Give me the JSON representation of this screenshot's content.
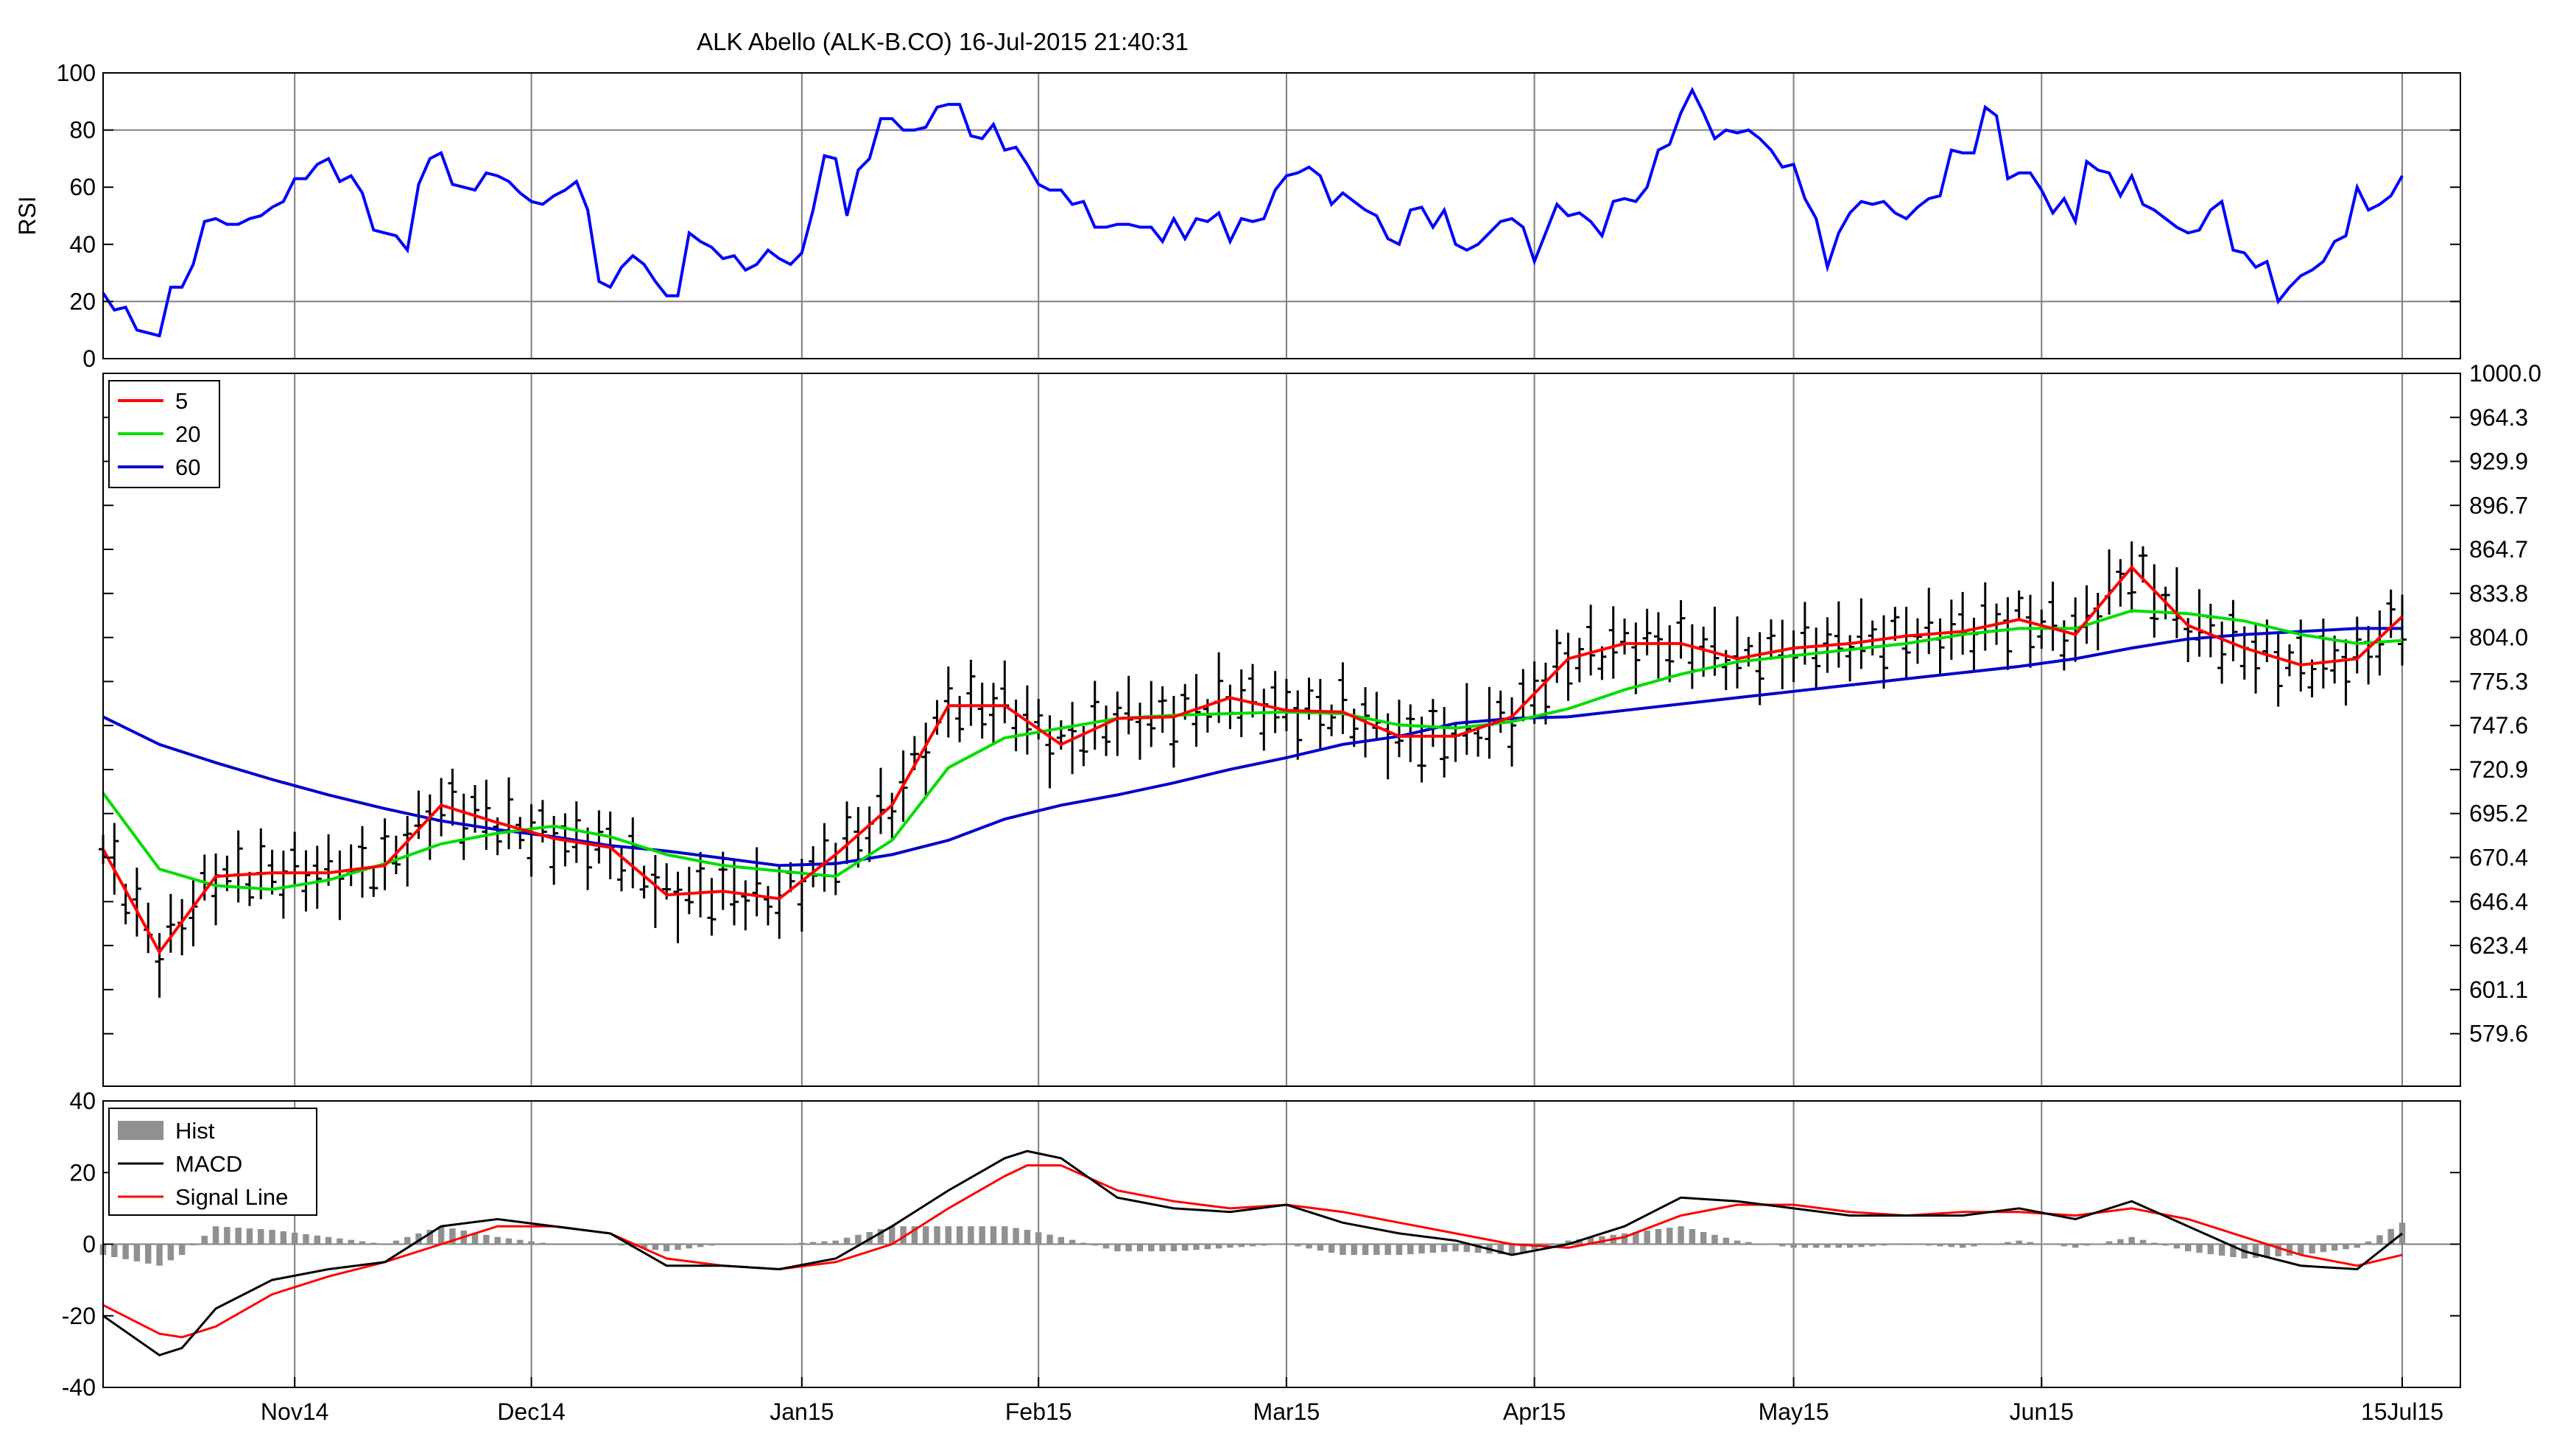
{
  "title": "ALK Abello (ALK-B.CO) 16-Jul-2015 21:40:31",
  "colors": {
    "rsi": "#0000ff",
    "ma5": "#ff0000",
    "ma20": "#00dd00",
    "ma60": "#0000cc",
    "macd": "#000000",
    "signal": "#ff0000",
    "hist": "#909090",
    "bars": "#000000",
    "grid": "#7f7f7f"
  },
  "chart_data": [
    {
      "type": "line",
      "panel": "rsi",
      "ylabel": "RSI",
      "ylim": [
        0,
        100
      ],
      "yticks": [
        0,
        20,
        40,
        60,
        80,
        100
      ],
      "hlines": [
        20,
        80
      ],
      "series": [
        {
          "name": "",
          "x": [
            0,
            1,
            2,
            3,
            4,
            5,
            6,
            7,
            8,
            9,
            10,
            11,
            12,
            13,
            14,
            15,
            16,
            17,
            18,
            19,
            20,
            21,
            22,
            23,
            24,
            25,
            26,
            27,
            28,
            29,
            30,
            31,
            32,
            33,
            34,
            35,
            36,
            37,
            38,
            39,
            40,
            41,
            42,
            43,
            44,
            45,
            46,
            47,
            48,
            49,
            50,
            51,
            52,
            53,
            54,
            55,
            56,
            57,
            58,
            59,
            60,
            61,
            62,
            63,
            64,
            65,
            66,
            67,
            68,
            69,
            70,
            71,
            72,
            73,
            74,
            75,
            76,
            77,
            78,
            79,
            80,
            81,
            82,
            83,
            84,
            85,
            86,
            87,
            88,
            89,
            90,
            91,
            92,
            93,
            94,
            95,
            96,
            97,
            98,
            99,
            100,
            101,
            102,
            103,
            104,
            105,
            106,
            107,
            108,
            109,
            110,
            111,
            112,
            113,
            114,
            115,
            116,
            117,
            118,
            119,
            120,
            121,
            122,
            123,
            124,
            125,
            126,
            127,
            128,
            129,
            130,
            131,
            132,
            133,
            134,
            135,
            136,
            137,
            138,
            139,
            140,
            141,
            142,
            143,
            144,
            145,
            146,
            147,
            148,
            149,
            150,
            151,
            152,
            153,
            154,
            155,
            156,
            157,
            158,
            159,
            160,
            161,
            162,
            163,
            164,
            165,
            166,
            167,
            168,
            169,
            170,
            171,
            172,
            173,
            174,
            175,
            176,
            177,
            178,
            179,
            180,
            181,
            182,
            183,
            184,
            185,
            186,
            187,
            188,
            189,
            190,
            191,
            192,
            193,
            194,
            195,
            196,
            197,
            198,
            199,
            200,
            201,
            202,
            203,
            204
          ],
          "y": [
            23,
            17,
            18,
            10,
            9,
            8,
            25,
            25,
            33,
            48,
            49,
            47,
            47,
            49,
            50,
            53,
            55,
            63,
            63,
            68,
            70,
            62,
            64,
            58,
            45,
            44,
            43,
            38,
            61,
            70,
            72,
            61,
            60,
            59,
            65,
            64,
            62,
            58,
            55,
            54,
            57,
            59,
            62,
            52,
            27,
            25,
            32,
            36,
            33,
            27,
            22,
            22,
            44,
            41,
            39,
            35,
            36,
            31,
            33,
            38,
            35,
            33,
            37,
            52,
            71,
            70,
            50,
            66,
            70,
            84,
            84,
            80,
            80,
            81,
            88,
            89,
            89,
            78,
            77,
            82,
            73,
            74,
            68,
            61,
            59,
            59,
            54,
            55,
            46,
            46,
            47,
            47,
            46,
            46,
            41,
            49,
            42,
            49,
            48,
            51,
            41,
            49,
            48,
            49,
            59,
            64,
            65,
            67,
            64,
            54,
            58,
            55,
            52,
            50,
            42,
            40,
            52,
            53,
            46,
            52,
            40,
            38,
            40,
            44,
            48,
            49,
            46,
            34,
            44,
            54,
            50,
            51,
            48,
            43,
            55,
            56,
            55,
            60,
            73,
            75,
            86,
            94,
            86,
            77,
            80,
            79,
            80,
            77,
            73,
            67,
            68,
            56,
            49,
            32,
            44,
            51,
            55,
            54,
            55,
            51,
            49,
            53,
            56,
            57,
            73,
            72,
            72,
            88,
            85,
            63,
            65,
            65,
            59,
            51,
            56,
            48,
            69,
            66,
            65,
            57,
            64,
            54,
            52,
            49,
            46,
            44,
            45,
            52,
            55,
            38,
            37,
            32,
            34,
            20,
            25,
            29,
            31,
            34,
            41,
            43,
            60,
            52,
            54,
            57,
            64
          ]
        }
      ]
    },
    {
      "type": "line",
      "panel": "price",
      "ylim": [
        555,
        1000
      ],
      "yticks": [
        579.6,
        601.1,
        623.4,
        646.4,
        670.4,
        695.2,
        720.9,
        747.6,
        775.3,
        804.0,
        833.8,
        864.7,
        896.7,
        929.9,
        964.3,
        1000.0
      ],
      "ytick_labels": [
        "579.6",
        "601.1",
        "623.4",
        "646.4",
        "670.4",
        "695.2",
        "720.9",
        "747.6",
        "775.3",
        "804.0",
        "833.8",
        "864.7",
        "896.7",
        "929.9",
        "964.3",
        "1000.0"
      ],
      "legend": [
        "5",
        "20",
        "60"
      ],
      "legend_position": "top-left",
      "series": [
        {
          "name": "5",
          "x": [
            0,
            5,
            10,
            15,
            20,
            25,
            30,
            35,
            40,
            45,
            50,
            55,
            60,
            65,
            70,
            75,
            80,
            85,
            90,
            95,
            100,
            105,
            110,
            115,
            120,
            125,
            130,
            135,
            140,
            145,
            150,
            155,
            160,
            165,
            170,
            175,
            180,
            185,
            190,
            195,
            200,
            204
          ],
          "y": [
            675,
            620,
            660,
            662,
            662,
            666,
            700,
            690,
            681,
            676,
            650,
            652,
            648,
            672,
            700,
            760,
            760,
            736,
            752,
            753,
            765,
            757,
            756,
            741,
            741,
            753,
            790,
            800,
            800,
            790,
            797,
            800,
            805,
            808,
            816,
            806,
            852,
            812,
            797,
            786,
            790,
            818
          ]
        },
        {
          "name": "20",
          "x": [
            0,
            5,
            10,
            15,
            20,
            25,
            30,
            35,
            40,
            45,
            50,
            55,
            60,
            65,
            70,
            75,
            80,
            85,
            90,
            95,
            100,
            105,
            110,
            115,
            120,
            125,
            130,
            135,
            140,
            145,
            150,
            155,
            160,
            165,
            170,
            175,
            180,
            185,
            190,
            195,
            200,
            204
          ],
          "y": [
            707,
            664,
            655,
            653,
            658,
            667,
            678,
            684,
            688,
            682,
            672,
            666,
            663,
            660,
            680,
            722,
            740,
            746,
            752,
            754,
            755,
            756,
            755,
            748,
            746,
            750,
            758,
            770,
            780,
            788,
            792,
            796,
            800,
            806,
            810,
            810,
            822,
            820,
            815,
            806,
            800,
            802
          ]
        },
        {
          "name": "60",
          "x": [
            0,
            5,
            10,
            15,
            20,
            25,
            30,
            35,
            40,
            45,
            50,
            55,
            60,
            65,
            70,
            75,
            80,
            85,
            90,
            95,
            100,
            105,
            110,
            115,
            120,
            125,
            130,
            135,
            140,
            145,
            150,
            155,
            160,
            165,
            170,
            175,
            180,
            185,
            190,
            195,
            200,
            204
          ],
          "y": [
            753,
            736,
            725,
            715,
            706,
            698,
            691,
            686,
            682,
            677,
            674,
            670,
            666,
            667,
            672,
            680,
            692,
            700,
            706,
            713,
            721,
            728,
            736,
            741,
            749,
            752,
            753,
            757,
            761,
            765,
            769,
            773,
            777,
            781,
            785,
            790,
            797,
            803,
            806,
            808,
            810,
            810
          ]
        }
      ]
    },
    {
      "type": "line",
      "panel": "macd",
      "ylim": [
        -40,
        40
      ],
      "yticks": [
        -40,
        -20,
        0,
        20,
        40
      ],
      "legend": [
        "Hist",
        "MACD",
        "Signal Line"
      ],
      "legend_position": "top-left",
      "series": [
        {
          "name": "MACD",
          "x": [
            0,
            5,
            7,
            10,
            15,
            20,
            25,
            30,
            35,
            40,
            45,
            50,
            55,
            60,
            65,
            70,
            75,
            80,
            82,
            85,
            90,
            95,
            100,
            105,
            110,
            115,
            120,
            125,
            130,
            135,
            140,
            145,
            150,
            155,
            160,
            165,
            170,
            175,
            180,
            185,
            190,
            195,
            200,
            204
          ],
          "y": [
            -20,
            -31,
            -29,
            -18,
            -10,
            -7,
            -5,
            5,
            7,
            5,
            3,
            -6,
            -6,
            -7,
            -4,
            5,
            15,
            24,
            26,
            24,
            13,
            10,
            9,
            11,
            6,
            3,
            1,
            -3,
            0,
            5,
            13,
            12,
            10,
            8,
            8,
            8,
            10,
            7,
            12,
            5,
            -2,
            -6,
            -7,
            3
          ]
        },
        {
          "name": "Signal Line",
          "x": [
            0,
            5,
            7,
            10,
            15,
            20,
            25,
            30,
            35,
            40,
            45,
            50,
            55,
            60,
            65,
            70,
            75,
            80,
            82,
            85,
            90,
            95,
            100,
            105,
            110,
            115,
            120,
            125,
            130,
            135,
            140,
            145,
            150,
            155,
            160,
            165,
            170,
            175,
            180,
            185,
            190,
            195,
            200,
            204
          ],
          "y": [
            -17,
            -25,
            -26,
            -23,
            -14,
            -9,
            -5,
            0,
            5,
            5,
            3,
            -4,
            -6,
            -7,
            -5,
            0,
            10,
            19,
            22,
            22,
            15,
            12,
            10,
            11,
            9,
            6,
            3,
            0,
            -1,
            2,
            8,
            11,
            11,
            9,
            8,
            9,
            9,
            8,
            10,
            7,
            2,
            -3,
            -6,
            -3
          ]
        },
        {
          "name": "Hist",
          "x": [
            0,
            5,
            7,
            10,
            15,
            20,
            25,
            30,
            35,
            40,
            45,
            50,
            55,
            60,
            65,
            70,
            75,
            80,
            82,
            85,
            90,
            95,
            100,
            105,
            110,
            115,
            120,
            125,
            130,
            135,
            140,
            145,
            150,
            155,
            160,
            165,
            170,
            175,
            180,
            185,
            190,
            195,
            200,
            204
          ],
          "y": [
            -3,
            -6,
            -3,
            5,
            4,
            2,
            0,
            5,
            2,
            0,
            0,
            -2,
            0,
            0,
            1,
            5,
            5,
            5,
            4,
            2,
            -2,
            -2,
            -1,
            0,
            -3,
            -3,
            -2,
            -3,
            1,
            3,
            5,
            1,
            -1,
            -1,
            0,
            -1,
            1,
            -1,
            2,
            -2,
            -4,
            -3,
            -1,
            6
          ]
        }
      ]
    },
    {
      "type": "table",
      "panel": "x-axis",
      "x_ticks": [
        17,
        38,
        62,
        83,
        105,
        127,
        150,
        172,
        204
      ],
      "x_tick_labels": [
        "Nov14",
        "Dec14",
        "Jan15",
        "Feb15",
        "Mar15",
        "Apr15",
        "May15",
        "Jun15",
        "15Jul15"
      ]
    }
  ]
}
